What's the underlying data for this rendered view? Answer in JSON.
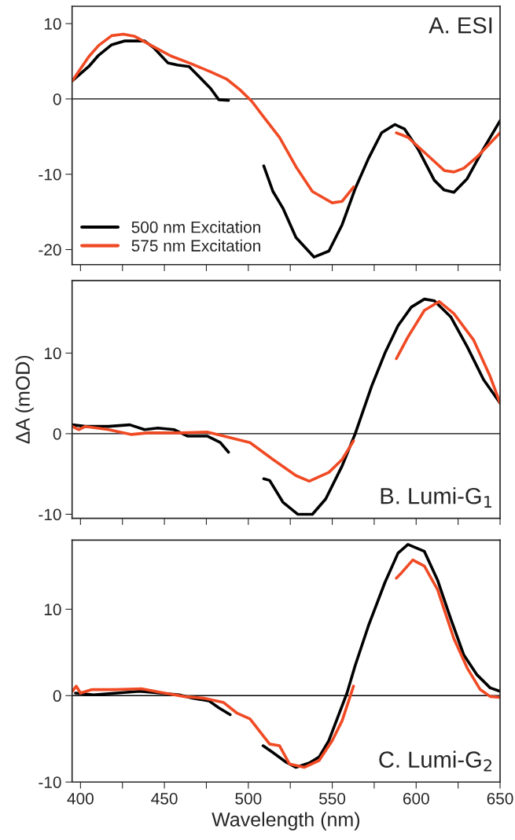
{
  "chart_data": [
    {
      "type": "line",
      "title": "A. ESI",
      "xlim": [
        395,
        650
      ],
      "ylim": [
        -22,
        12.3
      ],
      "yticks": [
        -20,
        -10,
        0,
        10
      ],
      "xticks": [
        {
          "value": 400,
          "label": null
        },
        {
          "value": 425,
          "label": null
        },
        {
          "value": 450,
          "label": null
        },
        {
          "value": 475,
          "label": null
        },
        {
          "value": 500,
          "label": null
        },
        {
          "value": 525,
          "label": null
        },
        {
          "value": 550,
          "label": null
        },
        {
          "value": 575,
          "label": null
        },
        {
          "value": 600,
          "label": null
        },
        {
          "value": 625,
          "label": null
        },
        {
          "value": 650,
          "label": null
        }
      ],
      "tick_labels": "y",
      "legend": "bottom left",
      "grid": false,
      "ref_lines": [
        {
          "axis": "y",
          "value": 0,
          "color": "#000000"
        }
      ],
      "series": [
        {
          "name": "500 nm Excitation",
          "color": "#000000",
          "x": [
            395.1,
            404.9,
            410.8,
            418.6,
            426.5,
            438.2,
            444.1,
            452,
            457.8,
            464.7,
            469.6,
            477.5,
            482.4,
            488.2,
            498,
            509.2,
            514.7,
            520.6,
            528.4,
            539.2,
            548,
            555.9,
            563.7,
            571.6,
            579.4,
            587.3,
            593.1,
            601,
            610.8,
            616.7,
            622.5,
            630.4,
            640.2,
            650
          ],
          "values": [
            2.4,
            4.3,
            5.8,
            7.2,
            7.7,
            7.7,
            6.7,
            4.8,
            4.5,
            4.3,
            3.2,
            1.4,
            -0.1,
            -0.2,
            null,
            -8.9,
            -12.3,
            -14.5,
            -18.4,
            -21.0,
            -20.2,
            -16.7,
            -11.9,
            -7.9,
            -4.5,
            -3.4,
            -4.0,
            -6.6,
            -10.8,
            -12.1,
            -12.4,
            -10.6,
            -6.6,
            -2.9
          ]
        },
        {
          "name": "575 nm Excitation",
          "color": "#f04a24",
          "x": [
            395.1,
            404.9,
            410.8,
            418.6,
            425.5,
            432.4,
            442.2,
            453.9,
            465.7,
            477.5,
            487.3,
            495.1,
            502,
            508.8,
            518.6,
            528.4,
            538.2,
            550,
            555.9,
            562.7,
            575,
            588.2,
            595.1,
            606.9,
            616.7,
            622.5,
            628.4,
            636.3,
            650
          ],
          "values": [
            2.4,
            5.6,
            7.1,
            8.4,
            8.6,
            8.3,
            7.1,
            5.7,
            4.7,
            3.6,
            2.6,
            1.2,
            -0.3,
            -2.3,
            -5.1,
            -9.0,
            -12.3,
            -13.8,
            -13.6,
            -11.7,
            null,
            -4.5,
            -5.1,
            -7.5,
            -9.5,
            -9.7,
            -9.2,
            -7.7,
            -4.5
          ]
        }
      ]
    },
    {
      "type": "line",
      "title": "B. Lumi-G$_{1}$",
      "ylabel": "ΔA (mOD)",
      "xlim": [
        395,
        650
      ],
      "ylim": [
        -10.5,
        19
      ],
      "yticks": [
        -10,
        0,
        10
      ],
      "xticks": [
        {
          "value": 400,
          "label": null
        },
        {
          "value": 425,
          "label": null
        },
        {
          "value": 450,
          "label": null
        },
        {
          "value": 475,
          "label": null
        },
        {
          "value": 500,
          "label": null
        },
        {
          "value": 525,
          "label": null
        },
        {
          "value": 550,
          "label": null
        },
        {
          "value": 575,
          "label": null
        },
        {
          "value": 600,
          "label": null
        },
        {
          "value": 625,
          "label": null
        },
        {
          "value": 650,
          "label": null
        }
      ],
      "tick_labels": "y",
      "grid": false,
      "ref_lines": [
        {
          "axis": "y",
          "value": 0,
          "color": "#000000"
        }
      ],
      "series": [
        {
          "color": "#000000",
          "x": [
            395.1,
            402.9,
            416.7,
            429.4,
            438.2,
            446.1,
            455.9,
            463.7,
            475.5,
            483.3,
            488.2,
            498,
            509.2,
            512.7,
            520.6,
            529.4,
            538.2,
            546.1,
            555.9,
            563.7,
            573.5,
            581.4,
            589.2,
            597.1,
            604.9,
            610.8,
            620.6,
            630.4,
            640.2,
            650
          ],
          "values": [
            1.1,
            0.9,
            0.9,
            1.1,
            0.5,
            0.7,
            0.5,
            -0.3,
            -0.3,
            -1.1,
            -2.3,
            null,
            -5.6,
            -5.8,
            -8.5,
            -10.0,
            -10.0,
            -8.1,
            -4.0,
            0,
            5.9,
            10.0,
            13.4,
            15.7,
            16.7,
            16.5,
            14.5,
            10.8,
            6.7,
            3.8
          ]
        },
        {
          "color": "#f04a24",
          "x": [
            395.1,
            399,
            402.9,
            416.7,
            430.4,
            440.2,
            459.8,
            475.5,
            489.2,
            501,
            514.7,
            528.4,
            536.3,
            548,
            555.9,
            562.7,
            575,
            588.2,
            595.1,
            604.9,
            613.7,
            622.5,
            634.3,
            644.1,
            650
          ],
          "values": [
            0.9,
            0.5,
            0.9,
            0.5,
            -0.1,
            0.1,
            0.1,
            0.2,
            -0.5,
            -1.1,
            -3.2,
            -5.2,
            -5.9,
            -4.8,
            -3.2,
            -0.9,
            null,
            9.3,
            12.0,
            15.3,
            16.4,
            14.9,
            11.6,
            7.1,
            3.8
          ]
        }
      ]
    },
    {
      "type": "line",
      "title": "C. Lumi-G$_{2}$",
      "xlabel": "Wavelength (nm)",
      "xlim": [
        395,
        650
      ],
      "ylim": [
        -10,
        18
      ],
      "yticks": [
        -10,
        0,
        10
      ],
      "xticks": [
        400,
        {
          "value": 425,
          "label": null
        },
        450,
        {
          "value": 475,
          "label": null
        },
        500,
        {
          "value": 525,
          "label": null
        },
        550,
        {
          "value": 575,
          "label": null
        },
        600,
        {
          "value": 625,
          "label": null
        },
        650
      ],
      "grid": false,
      "ref_lines": [
        {
          "axis": "y",
          "value": 0,
          "color": "#000000"
        }
      ],
      "series": [
        {
          "color": "#000000",
          "x": [
            397,
            407.8,
            421.6,
            435.3,
            447.1,
            458.8,
            466.7,
            476.5,
            482.4,
            489.2,
            498,
            508.8,
            514.7,
            522.5,
            528.4,
            536.3,
            542.2,
            548,
            553.9,
            558.8,
            563.7,
            571.6,
            581.4,
            589.2,
            595.1,
            604.9,
            612.7,
            620.6,
            628.4,
            636.3,
            644.1,
            650
          ],
          "values": [
            0.3,
            0.1,
            0.3,
            0.5,
            0.3,
            0.1,
            -0.3,
            -0.6,
            -1.4,
            -2.2,
            null,
            -5.8,
            -6.6,
            -7.7,
            -8.3,
            -7.8,
            -7.1,
            -5.2,
            -2.2,
            0.3,
            3.5,
            8.1,
            13.1,
            16.5,
            17.5,
            16.7,
            13.4,
            8.9,
            4.7,
            2.4,
            0.9,
            0.5
          ]
        },
        {
          "color": "#f04a24",
          "x": [
            395.1,
            397.5,
            400,
            406.9,
            420.6,
            436.3,
            450,
            461.8,
            473.5,
            485.3,
            493.1,
            501,
            512.7,
            518.6,
            524.5,
            533.3,
            542.2,
            550,
            555.9,
            562.7,
            575,
            588.2,
            591.2,
            598,
            604.9,
            612.7,
            622.5,
            630.4,
            638.2,
            644.1,
            650
          ],
          "values": [
            0.5,
            1.1,
            0.3,
            0.7,
            0.7,
            0.8,
            0.3,
            -0.1,
            -0.3,
            -0.8,
            -2.0,
            -2.7,
            -5.6,
            -5.8,
            -7.9,
            -8.3,
            -7.5,
            -5.2,
            -2.9,
            1.1,
            null,
            13.6,
            14.2,
            15.7,
            15.0,
            12.3,
            6.6,
            3.2,
            0.7,
            -0.1,
            -0.2
          ]
        }
      ]
    }
  ]
}
